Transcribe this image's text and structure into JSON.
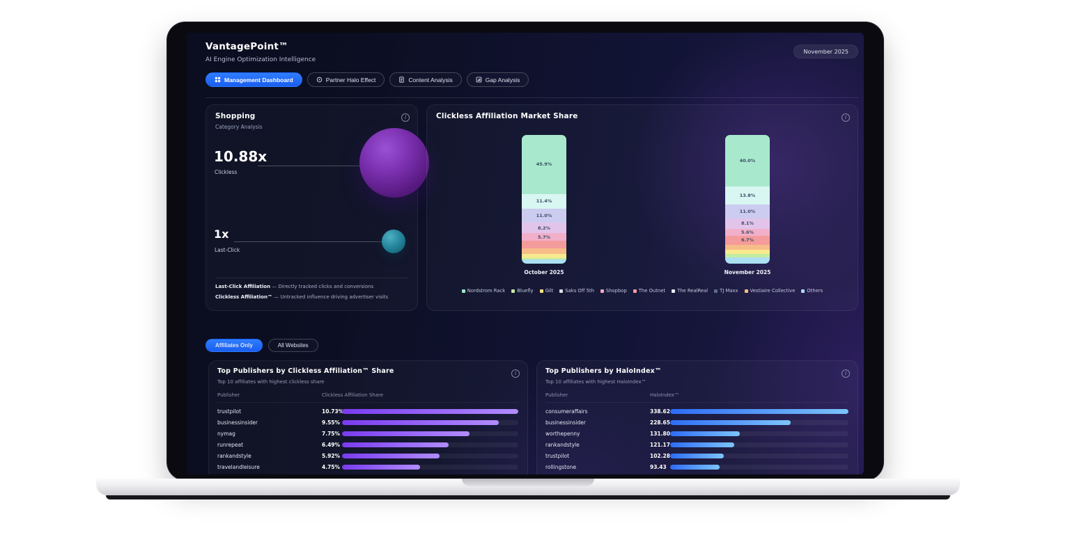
{
  "header": {
    "title": "VantagePoint™",
    "subtitle": "AI Engine Optimization Intelligence",
    "date_badge": "November 2025"
  },
  "tabs": [
    {
      "label": "Management Dashboard",
      "icon": "grid-icon",
      "active": true
    },
    {
      "label": "Partner Halo Effect",
      "icon": "target-icon",
      "active": false
    },
    {
      "label": "Content Analysis",
      "icon": "document-icon",
      "active": false
    },
    {
      "label": "Gap Analysis",
      "icon": "chart-square-icon",
      "active": false
    }
  ],
  "category_card": {
    "title": "Shopping",
    "subtitle": "Category Analysis",
    "clickless_value": "10.88x",
    "clickless_label": "Clickless",
    "lastclick_value": "1x",
    "lastclick_label": "Last-Click",
    "footnotes": [
      {
        "term": "Last-Click Affiliation",
        "desc": " — Directly tracked clicks and conversions"
      },
      {
        "term": "Clickless Affiliation™",
        "desc": " — Untracked influence driving advertiser visits"
      }
    ]
  },
  "market_card": {
    "title": "Clickless Affiliation Market Share"
  },
  "filters": [
    {
      "label": "Affiliates Only",
      "active": true
    },
    {
      "label": "All Websites",
      "active": false
    }
  ],
  "clickless_table": {
    "title": "Top Publishers by Clickless Affiliation™ Share",
    "subtitle": "Top 10 affiliates with highest clickless share",
    "columns": [
      "Publisher",
      "Clickless Affiliation Share"
    ],
    "bar_style": "purple",
    "rows": [
      {
        "publisher": "trustpilot",
        "display": "10.73%",
        "value": 10.73
      },
      {
        "publisher": "businessinsider",
        "display": "9.55%",
        "value": 9.55
      },
      {
        "publisher": "nymag",
        "display": "7.75%",
        "value": 7.75
      },
      {
        "publisher": "runrepeat",
        "display": "6.49%",
        "value": 6.49
      },
      {
        "publisher": "rankandstyle",
        "display": "5.92%",
        "value": 5.92
      },
      {
        "publisher": "travelandleisure",
        "display": "4.75%",
        "value": 4.75
      }
    ]
  },
  "haloindex_table": {
    "title": "Top Publishers by HaloIndex™",
    "subtitle": "Top 10 affiliates with highest HaloIndex™",
    "columns": [
      "Publisher",
      "HaloIndex™"
    ],
    "bar_style": "blue",
    "rows": [
      {
        "publisher": "consumeraffairs",
        "display": "338.62",
        "value": 338.62
      },
      {
        "publisher": "businessinsider",
        "display": "228.65",
        "value": 228.65
      },
      {
        "publisher": "worthepenny",
        "display": "131.80",
        "value": 131.8
      },
      {
        "publisher": "rankandstyle",
        "display": "121.17",
        "value": 121.17
      },
      {
        "publisher": "trustpilot",
        "display": "102.28",
        "value": 102.28
      },
      {
        "publisher": "rollingstone",
        "display": "93.43",
        "value": 93.43
      }
    ]
  },
  "chart_data": [
    {
      "type": "bar",
      "stacked": true,
      "title": "Clickless Affiliation Market Share",
      "categories": [
        "October 2025",
        "November 2025"
      ],
      "legend": [
        "Nordstrom Rack",
        "Bluefly",
        "Gilt",
        "Saks Off 5th",
        "Shopbop",
        "The Outnet",
        "The RealReal",
        "TJ Maxx",
        "Vestiaire Collective",
        "Others"
      ],
      "legend_colors": [
        "#9fe6c6",
        "#c8e9a2",
        "#f2e27e",
        "#d7dde6",
        "#f2a6c5",
        "#f49b9b",
        "#e6ecf4",
        "#5b6b8c",
        "#f7bd88",
        "#a9d9f2"
      ],
      "bars": [
        {
          "category": "October 2025",
          "segments": [
            {
              "value": 45.9,
              "label": "45.9%",
              "color": "#a8e9cd"
            },
            {
              "value": 11.4,
              "label": "11.4%",
              "color": "#d8f6f2"
            },
            {
              "value": 11.0,
              "label": "11.0%",
              "color": "#ccccf0"
            },
            {
              "value": 8.2,
              "label": "8.2%",
              "color": "#e2c4ea"
            },
            {
              "value": 5.7,
              "label": "5.7%",
              "color": "#f2afc9"
            },
            {
              "value": 6.0,
              "label": null,
              "color": "#f49b9b"
            },
            {
              "value": 4.2,
              "label": null,
              "color": "#f7bd88"
            },
            {
              "value": 3.1,
              "label": null,
              "color": "#f7e98e"
            },
            {
              "value": 1.5,
              "label": null,
              "color": "#c4ec9f"
            },
            {
              "value": 3.0,
              "label": null,
              "color": "#abdff2"
            }
          ]
        },
        {
          "category": "November 2025",
          "segments": [
            {
              "value": 40.0,
              "label": "40.0%",
              "color": "#a8e9cd"
            },
            {
              "value": 13.8,
              "label": "13.8%",
              "color": "#d8f6f2"
            },
            {
              "value": 11.0,
              "label": "11.0%",
              "color": "#ccccf0"
            },
            {
              "value": 8.1,
              "label": "8.1%",
              "color": "#e2c4ea"
            },
            {
              "value": 5.6,
              "label": "5.6%",
              "color": "#f2afc9"
            },
            {
              "value": 6.7,
              "label": "6.7%",
              "color": "#f49b9b"
            },
            {
              "value": 4.0,
              "label": null,
              "color": "#f7bd88"
            },
            {
              "value": 3.2,
              "label": null,
              "color": "#f7e98e"
            },
            {
              "value": 2.8,
              "label": null,
              "color": "#c4ec9f"
            },
            {
              "value": 4.8,
              "label": null,
              "color": "#abdff2"
            }
          ]
        }
      ]
    },
    {
      "type": "bar",
      "orientation": "horizontal",
      "title": "Top Publishers by Clickless Affiliation™ Share",
      "categories": [
        "trustpilot",
        "businessinsider",
        "nymag",
        "runrepeat",
        "rankandstyle",
        "travelandleisure"
      ],
      "values": [
        10.73,
        9.55,
        7.75,
        6.49,
        5.92,
        4.75
      ],
      "unit": "%"
    },
    {
      "type": "bar",
      "orientation": "horizontal",
      "title": "Top Publishers by HaloIndex™",
      "categories": [
        "consumeraffairs",
        "businessinsider",
        "worthepenny",
        "rankandstyle",
        "trustpilot",
        "rollingstone"
      ],
      "values": [
        338.62,
        228.65,
        131.8,
        121.17,
        102.28,
        93.43
      ]
    }
  ],
  "colors": {
    "accent_blue": "#1e6dff",
    "bar_purple": "#7a3bf0",
    "bar_blue": "#2e6cf6"
  }
}
